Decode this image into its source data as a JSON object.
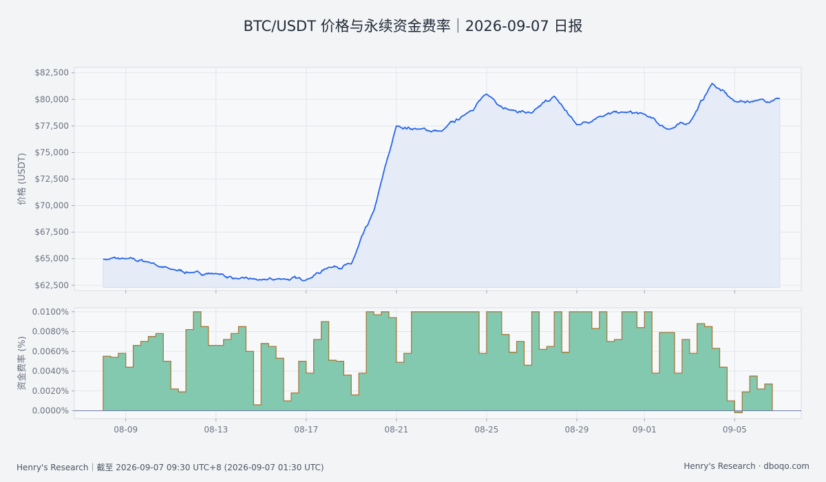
{
  "title": "BTC/USDT 价格与永续资金费率｜2026-09-07 日报",
  "footer": {
    "left": "Henry's Research｜截至 2026-09-07 09:30 UTC+8 (2026-09-07 01:30 UTC)",
    "right": "Henry's Research · dboqo.com"
  },
  "colors": {
    "price_line": "#2563eb",
    "price_fill": "#e5ecf8",
    "funding_fill": "#82c9b0",
    "funding_line": "#a57a3a",
    "zero_line": "#6f7aa3"
  },
  "chart_data": [
    {
      "type": "line",
      "ylabel": "价格 (USDT)",
      "ylim": [
        62000,
        83000
      ],
      "yticks": [
        62500,
        65000,
        67500,
        70000,
        72500,
        75000,
        77500,
        80000,
        82500
      ],
      "ytick_labels": [
        "$62,500",
        "$65,000",
        "$67,500",
        "$70,000",
        "$72,500",
        "$75,000",
        "$77,500",
        "$80,000",
        "$82,500"
      ],
      "grid": true,
      "series": [
        {
          "x": [
            "2026-08-08",
            "2026-08-09",
            "2026-08-10",
            "2026-08-11",
            "2026-08-12",
            "2026-08-13",
            "2026-08-14",
            "2026-08-15",
            "2026-08-16",
            "2026-08-17",
            "2026-08-18",
            "2026-08-19",
            "2026-08-20",
            "2026-08-21",
            "2026-08-22",
            "2026-08-23",
            "2026-08-24",
            "2026-08-25",
            "2026-08-26",
            "2026-08-27",
            "2026-08-28",
            "2026-08-29",
            "2026-08-30",
            "2026-08-31",
            "2026-09-01",
            "2026-09-02",
            "2026-09-03",
            "2026-09-04",
            "2026-09-05",
            "2026-09-06",
            "2026-09-07"
          ],
          "values": [
            64950,
            65000,
            64700,
            64000,
            63700,
            63600,
            63100,
            63000,
            63100,
            63000,
            64200,
            64500,
            69500,
            77500,
            77200,
            77000,
            78500,
            80500,
            79000,
            78700,
            80300,
            77600,
            78400,
            78800,
            78600,
            77200,
            77800,
            81500,
            79800,
            79900,
            80100
          ]
        }
      ]
    },
    {
      "type": "area",
      "ylabel": "资金费率 (%)",
      "ylim": [
        -0.0008,
        0.0104
      ],
      "yticks": [
        0,
        0.002,
        0.004,
        0.006,
        0.008,
        0.01
      ],
      "ytick_labels": [
        "0.0000%",
        "0.0020%",
        "0.0040%",
        "0.0060%",
        "0.0080%",
        "0.0100%"
      ],
      "grid": true,
      "xtick_labels": [
        "08-09",
        "08-13",
        "08-17",
        "08-21",
        "08-25",
        "08-29",
        "09-01",
        "09-05"
      ],
      "xtick_dates": [
        "2026-08-09",
        "2026-08-13",
        "2026-08-17",
        "2026-08-21",
        "2026-08-25",
        "2026-08-29",
        "2026-09-01",
        "2026-09-05"
      ],
      "series": [
        {
          "interval_hours": 8,
          "start": "2026-08-08 00:00",
          "values": [
            0.0055,
            0.0054,
            0.0058,
            0.0044,
            0.0066,
            0.007,
            0.0075,
            0.0078,
            0.005,
            0.0022,
            0.0019,
            0.0082,
            0.01,
            0.0085,
            0.0066,
            0.0066,
            0.0072,
            0.0078,
            0.0085,
            0.006,
            0.0006,
            0.0068,
            0.0065,
            0.0053,
            0.001,
            0.0018,
            0.005,
            0.0038,
            0.0072,
            0.009,
            0.0051,
            0.005,
            0.0036,
            0.0016,
            0.0038,
            0.01,
            0.0097,
            0.01,
            0.0094,
            0.0049,
            0.0058,
            0.01,
            0.01,
            0.01,
            0.01,
            0.01,
            0.01,
            0.01,
            0.01,
            0.01,
            0.0058,
            0.01,
            0.01,
            0.0077,
            0.0059,
            0.007,
            0.0046,
            0.01,
            0.0062,
            0.0065,
            0.01,
            0.0059,
            0.01,
            0.01,
            0.01,
            0.0083,
            0.01,
            0.007,
            0.0072,
            0.01,
            0.01,
            0.0084,
            0.01,
            0.0038,
            0.0079,
            0.0079,
            0.0038,
            0.0072,
            0.0058,
            0.0088,
            0.0085,
            0.0063,
            0.0044,
            0.001,
            -0.0002,
            0.0019,
            0.0035,
            0.0022,
            0.0027
          ]
        }
      ]
    }
  ]
}
